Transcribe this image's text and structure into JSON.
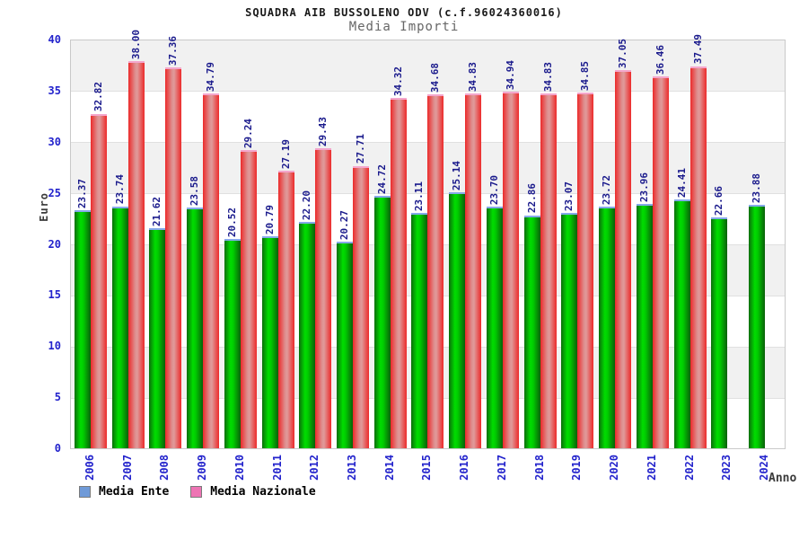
{
  "header": {
    "title": "SQUADRA AIB BUSSOLENO ODV (c.f.96024360016)",
    "subtitle": "Media Importi"
  },
  "axes": {
    "y_label": "Euro",
    "x_label": "Anno",
    "y_ticks": [
      0,
      5,
      10,
      15,
      20,
      25,
      30,
      35,
      40
    ],
    "y_max": 40
  },
  "legend": {
    "items": [
      {
        "label": "Media Ente",
        "swatch_color": "#6f9ad8"
      },
      {
        "label": "Media Nazionale",
        "swatch_color": "#ee74b4"
      }
    ]
  },
  "colors": {
    "bar_ente_edge": "#0b6e0b",
    "bar_ente_center": "#00dd00",
    "bar_ente_cap": "#86a9ea",
    "bar_naz_edge": "#ec2a2a",
    "bar_naz_center": "#de8f8f",
    "bar_naz_cap": "#f4a6cc",
    "value_label": "#1a1a8c",
    "axis_tick_label": "#2323cc",
    "band_gray": "#f1f1f1",
    "gridline": "#e0e0e0",
    "plot_border": "#c9c9c9"
  },
  "chart_data": {
    "type": "bar",
    "title": "Media Importi",
    "xlabel": "Anno",
    "ylabel": "Euro",
    "ylim": [
      0,
      40
    ],
    "grid": true,
    "legend_position": "bottom-left",
    "categories": [
      "2006",
      "2007",
      "2008",
      "2009",
      "2010",
      "2011",
      "2012",
      "2013",
      "2014",
      "2015",
      "2016",
      "2017",
      "2018",
      "2019",
      "2020",
      "2021",
      "2022",
      "2023",
      "2024"
    ],
    "series": [
      {
        "name": "Media Ente",
        "color": "green",
        "values": [
          23.37,
          23.74,
          21.62,
          23.58,
          20.52,
          20.79,
          22.2,
          20.27,
          24.72,
          23.11,
          25.14,
          23.7,
          22.86,
          23.07,
          23.72,
          23.96,
          24.41,
          22.66,
          23.88
        ]
      },
      {
        "name": "Media Nazionale",
        "color": "red",
        "values": [
          32.82,
          38.0,
          37.36,
          34.79,
          29.24,
          27.19,
          29.43,
          27.71,
          34.32,
          34.68,
          34.83,
          34.94,
          34.83,
          34.85,
          37.05,
          36.46,
          37.49,
          null,
          null
        ]
      }
    ]
  }
}
